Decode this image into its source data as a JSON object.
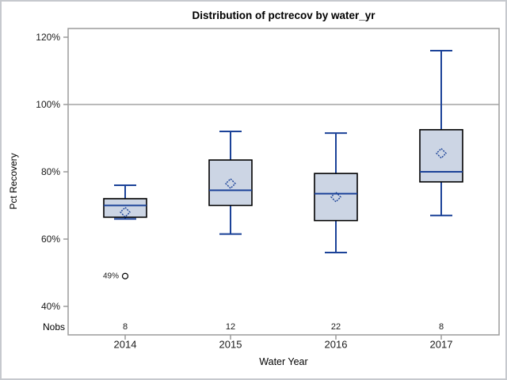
{
  "figure": {
    "nobs_label": "Nobs"
  },
  "chart_data": {
    "type": "boxplot",
    "title": "Distribution of pctrecov by water_yr",
    "xlabel": "Water Year",
    "ylabel": "Pct Recovery",
    "categories": [
      "2014",
      "2015",
      "2016",
      "2017"
    ],
    "nobs": [
      "8",
      "12",
      "22",
      "8"
    ],
    "y_axis": {
      "min": 40,
      "max": 120,
      "tick_step": 20,
      "tick_labels": [
        "40%",
        "60%",
        "80%",
        "100%",
        "120%"
      ],
      "format": "percent"
    },
    "reference_line": 100,
    "legend": "none",
    "grid": "off",
    "series": [
      {
        "category": "2014",
        "n": 8,
        "whisker_low": 66,
        "q1": 66.5,
        "median": 70,
        "q3": 72,
        "whisker_high": 76,
        "mean": 68,
        "outliers": [
          {
            "value": 49,
            "label": "49%"
          }
        ]
      },
      {
        "category": "2015",
        "n": 12,
        "whisker_low": 61.5,
        "q1": 70,
        "median": 74.5,
        "q3": 83.5,
        "whisker_high": 92,
        "mean": 76.5,
        "outliers": []
      },
      {
        "category": "2016",
        "n": 22,
        "whisker_low": 56,
        "q1": 65.5,
        "median": 73.5,
        "q3": 79.5,
        "whisker_high": 91.5,
        "mean": 72.5,
        "outliers": []
      },
      {
        "category": "2017",
        "n": 8,
        "whisker_low": 67,
        "q1": 77,
        "median": 80,
        "q3": 92.5,
        "whisker_high": 116,
        "mean": 85.5,
        "outliers": []
      }
    ],
    "colors": {
      "box_fill": "#ccd5e4",
      "box_border": "#000000",
      "line": "#1b4298",
      "reference_line": "#a3a3a3",
      "axis": "#9b9b9b",
      "tick_text": "#1a1a1a",
      "outlier": "#000000",
      "background": "#ffffff"
    }
  }
}
